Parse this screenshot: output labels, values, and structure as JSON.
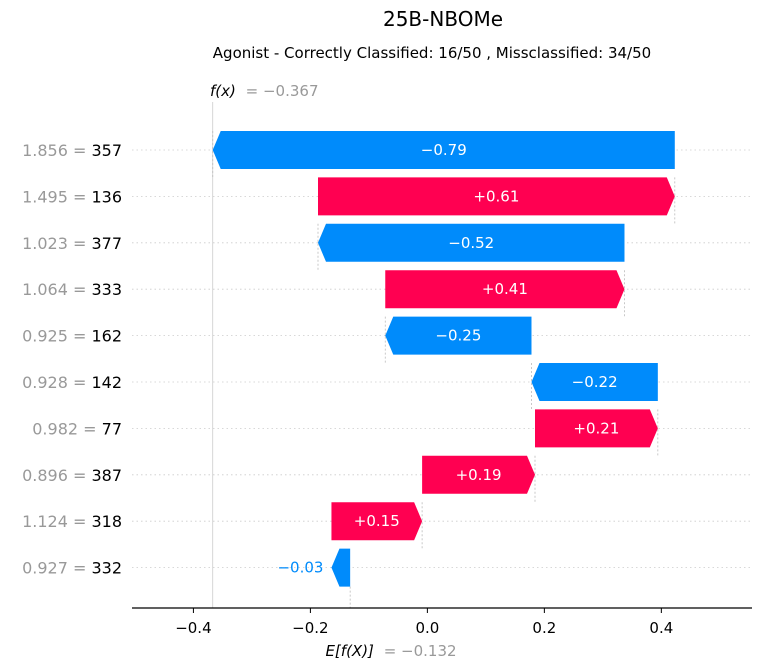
{
  "chart_data": {
    "type": "waterfall",
    "title": "25B-NBOMe",
    "subtitle": "Agonist - Correctly Classified: 16/50 , Missclassified: 34/50",
    "fx": {
      "label": "f(x)",
      "value": -0.367,
      "value_text": "= −0.367"
    },
    "base": {
      "label": "E[f(X)]",
      "value": -0.132,
      "value_text": "= −0.132"
    },
    "xlim": [
      -0.505,
      0.555
    ],
    "xticks": [
      -0.4,
      -0.2,
      0.0,
      0.2,
      0.4
    ],
    "xtick_labels": [
      "−0.4",
      "−0.2",
      "0.0",
      "0.2",
      "0.4"
    ],
    "features": [
      {
        "value": "1.856",
        "name": "357",
        "contribution": -0.79,
        "label": "−0.79",
        "start": 0.423,
        "end": -0.367
      },
      {
        "value": "1.495",
        "name": "136",
        "contribution": 0.61,
        "label": "+0.61",
        "start": -0.187,
        "end": 0.423
      },
      {
        "value": "1.023",
        "name": "377",
        "contribution": -0.52,
        "label": "−0.52",
        "start": 0.337,
        "end": -0.187
      },
      {
        "value": "1.064",
        "name": "333",
        "contribution": 0.41,
        "label": "+0.41",
        "start": -0.072,
        "end": 0.337
      },
      {
        "value": "0.925",
        "name": "162",
        "contribution": -0.25,
        "label": "−0.25",
        "start": 0.178,
        "end": -0.072
      },
      {
        "value": "0.928",
        "name": "142",
        "contribution": -0.22,
        "label": "−0.22",
        "start": 0.394,
        "end": 0.178
      },
      {
        "value": "0.982",
        "name": "77",
        "contribution": 0.21,
        "label": "+0.21",
        "start": 0.184,
        "end": 0.394
      },
      {
        "value": "0.896",
        "name": "387",
        "contribution": 0.19,
        "label": "+0.19",
        "start": -0.009,
        "end": 0.184
      },
      {
        "value": "1.124",
        "name": "318",
        "contribution": 0.15,
        "label": "+0.15",
        "start": -0.164,
        "end": -0.009
      },
      {
        "value": "0.927",
        "name": "332",
        "contribution": -0.03,
        "label": "−0.03",
        "start": -0.132,
        "end": -0.164
      }
    ],
    "colors": {
      "positive": "#ff0051",
      "negative": "#008bfb",
      "muted": "#999999"
    }
  }
}
